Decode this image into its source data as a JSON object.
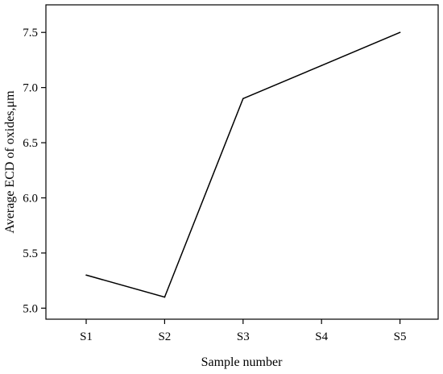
{
  "chart_data": {
    "type": "line",
    "title": "",
    "xlabel": "Sample number",
    "ylabel": "Average ECD of oxides,μm",
    "categories": [
      "S1",
      "S2",
      "S3",
      "S4",
      "S5"
    ],
    "series": [
      {
        "values": [
          5.3,
          5.1,
          6.9,
          7.2,
          7.5
        ]
      }
    ],
    "ylim": [
      4.9,
      7.75
    ],
    "yticks": [
      5.0,
      5.5,
      6.0,
      6.5,
      7.0,
      7.5
    ],
    "ytick_labels": [
      "5.0",
      "5.5",
      "6.0",
      "6.5",
      "7.0",
      "7.5"
    ],
    "grid": false,
    "legend": "none",
    "line_color": "#000000"
  }
}
